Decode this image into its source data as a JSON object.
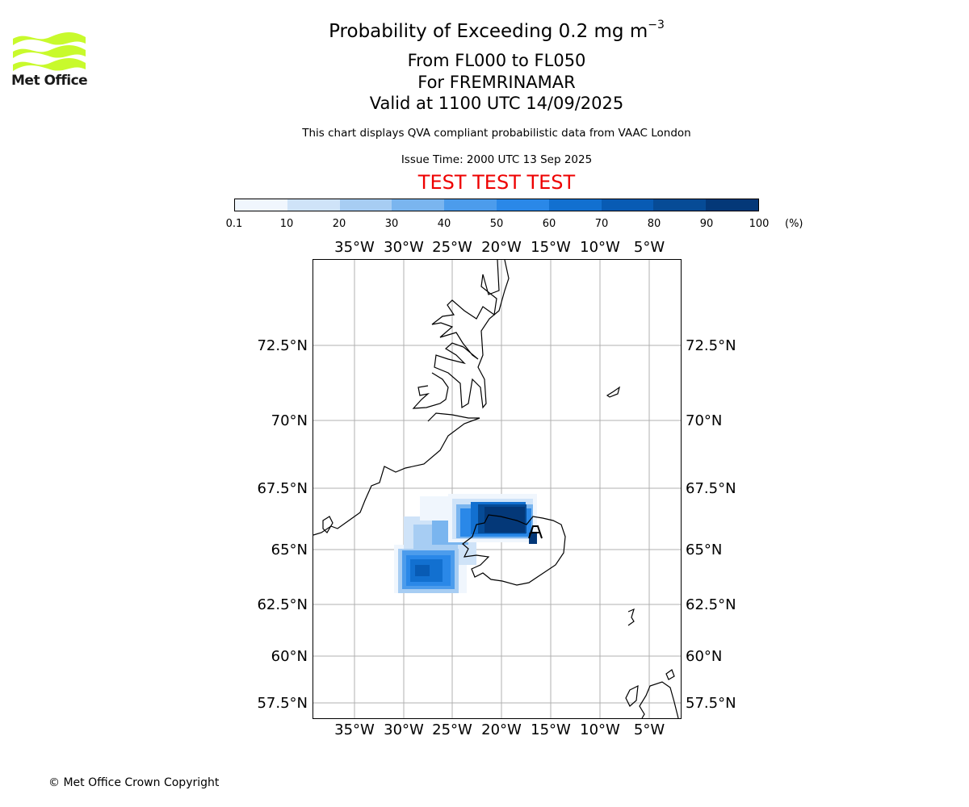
{
  "logo": {
    "text": "Met Office",
    "color": "#c8fa2c"
  },
  "title": {
    "main": "Probability of Exceeding 0.2 mg m",
    "superscript": "−3"
  },
  "subtitles": [
    "From FL000 to FL050",
    "For FREMRINAMAR",
    "Valid at 1100 UTC 14/09/2025"
  ],
  "note": "This chart displays QVA compliant probabilistic data from VAAC London",
  "issue_time": "Issue Time: 2000 UTC 13 Sep 2025",
  "test_banner": "TEST TEST TEST",
  "colorbar": {
    "ticks": [
      "0.1",
      "10",
      "20",
      "30",
      "40",
      "50",
      "60",
      "70",
      "80",
      "90",
      "100"
    ],
    "unit": "(%)",
    "colors": [
      "#f0f6fd",
      "#cfe3f8",
      "#a7cdf3",
      "#7ab5ef",
      "#4c9cec",
      "#2a88e8",
      "#1270d0",
      "#085bb4",
      "#064b96",
      "#043878"
    ]
  },
  "map": {
    "lon_labels": [
      "35°W",
      "30°W",
      "25°W",
      "20°W",
      "15°W",
      "10°W",
      "5°W"
    ],
    "lat_labels": [
      "72.5°N",
      "70°N",
      "67.5°N",
      "65°N",
      "62.5°N",
      "60°N",
      "57.5°N"
    ],
    "gridline_color": "#b0b0b0",
    "volcano": "Fremrinamar"
  },
  "copyright": "© Met Office Crown Copyright"
}
